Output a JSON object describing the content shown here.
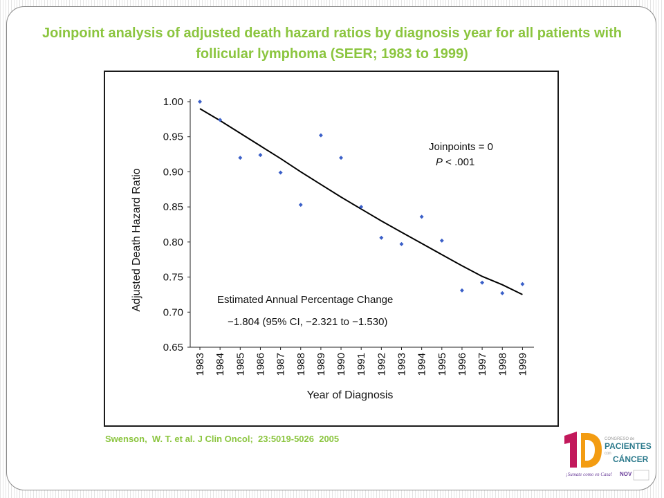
{
  "slide": {
    "title": "Joinpoint analysis of adjusted death hazard ratios by diagnosis year for all patients with follicular lymphoma (SEER; 1983 to 1999)",
    "citation": "Swenson,  W. T. et al. J Clin Oncol;  23:5019-5026  2005"
  },
  "logo": {
    "icon": "congreso-pacientes-logo",
    "line1": "CONGRESO de",
    "line2": "PACIENTES",
    "line3": "con",
    "line4": "CÁNCER",
    "tagline": "¡Sumate como en Casa!",
    "badge": "NOV",
    "colors": {
      "magenta": "#c2185b",
      "orange": "#f39c12",
      "teal": "#2c7a8c",
      "purple": "#6a3d9a"
    }
  },
  "chart_data": {
    "type": "scatter",
    "xlabel": "Year of Diagnosis",
    "ylabel": "Adjusted Death Hazard Ratio",
    "ylim": [
      0.65,
      1.0
    ],
    "yticks": [
      "0.65",
      "0.70",
      "0.75",
      "0.80",
      "0.85",
      "0.90",
      "0.95",
      "1.00"
    ],
    "x": [
      "1983",
      "1984",
      "1985",
      "1986",
      "1987",
      "1988",
      "1989",
      "1990",
      "1991",
      "1992",
      "1993",
      "1994",
      "1995",
      "1996",
      "1997",
      "1998",
      "1999"
    ],
    "series": [
      {
        "values": [
          1.0,
          0.974,
          0.92,
          0.924,
          0.899,
          0.853,
          0.952,
          0.92,
          0.85,
          0.806,
          0.797,
          0.836,
          0.802,
          0.731,
          0.742,
          0.727,
          0.74
        ],
        "marker": "diamond",
        "color": "#3a5fc8"
      },
      {
        "values": [
          0.99,
          0.973,
          0.955,
          0.937,
          0.919,
          0.9,
          0.882,
          0.864,
          0.847,
          0.83,
          0.814,
          0.798,
          0.782,
          0.766,
          0.751,
          0.739,
          0.725
        ],
        "style": "line",
        "color": "#000000"
      }
    ],
    "annotations": {
      "joinpoints": "Joinpoints = 0",
      "p_prefix": "P",
      "p_value": " < .001",
      "apc_title": "Estimated Annual Percentage Change",
      "apc_value": "−1.804  (95% CI, −2.321 to  −1.530)"
    },
    "grid": false,
    "legend": "none"
  }
}
